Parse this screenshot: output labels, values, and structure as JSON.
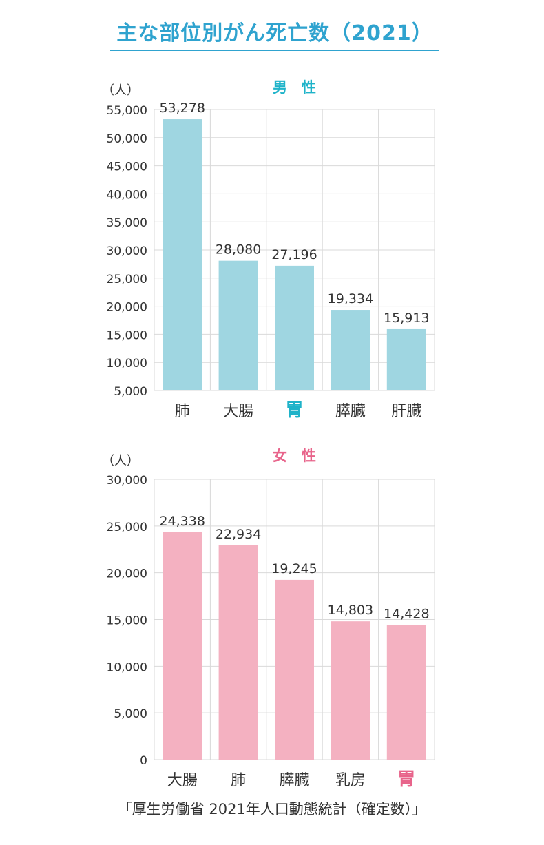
{
  "title": "主な部位別がん死亡数（2021）",
  "source": "「厚生労働省 2021年人口動態統計（確定数）」",
  "colors": {
    "title": "#2fa3cf",
    "male_bar": "#9fd6e1",
    "male_label": "#1fb3c9",
    "female_bar": "#f4b1c1",
    "female_label": "#e8648b",
    "grid": "#d9d9d9",
    "text": "#333333"
  },
  "chart_data": [
    {
      "type": "bar",
      "title": "男　性",
      "unit": "（人）",
      "categories": [
        "肺",
        "大腸",
        "胃",
        "膵臓",
        "肝臓"
      ],
      "highlight_category": "胃",
      "values": [
        53278,
        28080,
        27196,
        19334,
        15913
      ],
      "value_labels": [
        "53,278",
        "28,080",
        "27,196",
        "19,334",
        "15,913"
      ],
      "yticks": [
        "5,000",
        "10,000",
        "15,000",
        "20,000",
        "25,000",
        "30,000",
        "35,000",
        "40,000",
        "45,000",
        "50,000",
        "55,000"
      ],
      "ylim": [
        5000,
        55000
      ],
      "grid": true
    },
    {
      "type": "bar",
      "title": "女　性",
      "unit": "（人）",
      "categories": [
        "大腸",
        "肺",
        "膵臓",
        "乳房",
        "胃"
      ],
      "highlight_category": "胃",
      "values": [
        24338,
        22934,
        19245,
        14803,
        14428
      ],
      "value_labels": [
        "24,338",
        "22,934",
        "19,245",
        "14,803",
        "14,428"
      ],
      "yticks": [
        "0",
        "5,000",
        "10,000",
        "15,000",
        "20,000",
        "25,000",
        "30,000"
      ],
      "ylim": [
        0,
        30000
      ],
      "grid": true
    }
  ]
}
